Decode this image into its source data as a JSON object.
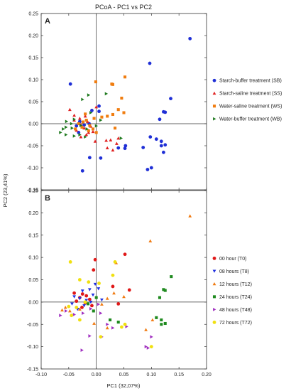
{
  "chart_data": {
    "type": "scatter",
    "title": "PCoA - PC1 vs PC2",
    "xlabel": "PC1 (32,07%)",
    "ylabel": "PC2 (23,41%)",
    "xlim": [
      -0.1,
      0.2
    ],
    "xticks": [
      "-0.10",
      "-0.05",
      "0.00",
      "0.05",
      "0.10",
      "0.15",
      "0.20"
    ],
    "xtick_values": [
      -0.1,
      -0.05,
      0.0,
      0.05,
      0.1,
      0.15,
      0.2
    ],
    "ylim": [
      -0.15,
      0.25
    ],
    "yticks": [
      "-0.15",
      "-0.10",
      "-0.05",
      "0.00",
      "0.05",
      "0.10",
      "0.15",
      "0.20",
      "0.25"
    ],
    "ytick_values": [
      -0.15,
      -0.1,
      -0.05,
      0.0,
      0.05,
      0.1,
      0.15,
      0.2,
      0.25
    ],
    "grid": false,
    "legend_position": "right",
    "panels": [
      {
        "label": "A",
        "series": [
          {
            "name": "Starch-buffer treatment (SB)",
            "marker": "circle",
            "color": "#1f2fd6",
            "points": [
              [
                0.17,
                0.193
              ],
              [
                0.097,
                0.137
              ],
              [
                0.135,
                0.057
              ],
              [
                0.122,
                0.027
              ],
              [
                0.125,
                0.026
              ],
              [
                0.115,
                0.01
              ],
              [
                0.098,
                -0.03
              ],
              [
                0.109,
                -0.035
              ],
              [
                0.118,
                -0.04
              ],
              [
                0.125,
                -0.048
              ],
              [
                0.118,
                -0.05
              ],
              [
                0.122,
                -0.065
              ],
              [
                0.1,
                -0.1
              ],
              [
                0.093,
                -0.104
              ],
              [
                0.085,
                -0.054
              ],
              [
                0.053,
                -0.05
              ],
              [
                0.052,
                -0.056
              ],
              [
                0.04,
                -0.055
              ],
              [
                0.008,
                -0.078
              ],
              [
                -0.012,
                -0.077
              ],
              [
                -0.025,
                -0.107
              ],
              [
                0.005,
                0.028
              ],
              [
                0.005,
                0.04
              ],
              [
                -0.047,
                0.09
              ],
              [
                -0.008,
                0.03
              ],
              [
                -0.03,
                0.005
              ],
              [
                -0.036,
                -0.005
              ],
              [
                -0.022,
                -0.003
              ],
              [
                -0.013,
                0.0
              ],
              [
                -0.032,
                -0.02
              ]
            ]
          },
          {
            "name": "Starch-saline treatment (SS)",
            "marker": "triangle-up",
            "color": "#e02020",
            "points": [
              [
                0.0,
                0.038
              ],
              [
                -0.048,
                0.032
              ],
              [
                -0.02,
                0.017
              ],
              [
                -0.03,
                0.012
              ],
              [
                -0.04,
                0.008
              ],
              [
                -0.016,
                0.005
              ],
              [
                -0.028,
                -0.002
              ],
              [
                -0.01,
                -0.006
              ],
              [
                -0.022,
                -0.01
              ],
              [
                -0.036,
                -0.015
              ],
              [
                -0.006,
                -0.018
              ],
              [
                -0.014,
                -0.02
              ],
              [
                -0.028,
                -0.03
              ],
              [
                -0.002,
                -0.04
              ],
              [
                0.04,
                -0.033
              ],
              [
                0.026,
                -0.037
              ],
              [
                0.018,
                -0.038
              ],
              [
                0.037,
                -0.045
              ],
              [
                0.03,
                -0.06
              ],
              [
                0.02,
                -0.055
              ],
              [
                -0.04,
                0.019
              ],
              [
                -0.018,
                -0.025
              ]
            ]
          },
          {
            "name": "Water-saline treatment (WS)",
            "marker": "square",
            "color": "#f07d10",
            "points": [
              [
                0.052,
                0.106
              ],
              [
                -0.001,
                0.095
              ],
              [
                0.028,
                0.09
              ],
              [
                0.03,
                0.089
              ],
              [
                0.046,
                0.058
              ],
              [
                0.04,
                0.032
              ],
              [
                0.05,
                0.025
              ],
              [
                0.03,
                0.021
              ],
              [
                0.02,
                0.017
              ],
              [
                0.01,
                0.015
              ],
              [
                -0.004,
                0.012
              ],
              [
                -0.018,
                0.008
              ],
              [
                -0.024,
                0.004
              ],
              [
                -0.032,
                0.0
              ],
              [
                -0.012,
                -0.004
              ],
              [
                -0.026,
                -0.008
              ],
              [
                -0.006,
                -0.012
              ],
              [
                -0.038,
                -0.012
              ],
              [
                -0.014,
                -0.016
              ],
              [
                0.034,
                -0.01
              ],
              [
                -0.02,
                0.022
              ],
              [
                0.0,
                -0.02
              ]
            ]
          },
          {
            "name": "Water-buffer treatment (WB)",
            "marker": "triangle-right",
            "color": "#1f7a1f",
            "points": [
              [
                -0.025,
                0.055
              ],
              [
                -0.014,
                0.065
              ],
              [
                0.018,
                0.068
              ],
              [
                -0.01,
                0.025
              ],
              [
                -0.04,
                0.01
              ],
              [
                -0.054,
                0.005
              ],
              [
                -0.055,
                -0.008
              ],
              [
                -0.044,
                -0.01
              ],
              [
                -0.065,
                -0.02
              ],
              [
                -0.055,
                -0.025
              ],
              [
                -0.04,
                -0.028
              ],
              [
                -0.03,
                -0.025
              ],
              [
                -0.017,
                -0.012
              ],
              [
                -0.028,
                -0.004
              ],
              [
                -0.045,
                0.0
              ],
              [
                -0.02,
                -0.03
              ],
              [
                0.045,
                -0.033
              ],
              [
                -0.06,
                -0.012
              ],
              [
                0.0,
                -0.005
              ],
              [
                0.008,
                0.008
              ]
            ]
          }
        ]
      },
      {
        "label": "B",
        "series": [
          {
            "name": "00 hour (T0)",
            "marker": "circle",
            "color": "#e01818",
            "points": [
              [
                0.052,
                0.107
              ],
              [
                -0.002,
                0.095
              ],
              [
                -0.005,
                0.072
              ],
              [
                0.03,
                0.035
              ],
              [
                0.06,
                0.027
              ],
              [
                -0.04,
                0.02
              ],
              [
                -0.025,
                0.018
              ],
              [
                -0.018,
                0.014
              ],
              [
                -0.03,
                0.01
              ],
              [
                -0.012,
                0.006
              ],
              [
                -0.036,
                0.002
              ],
              [
                -0.02,
                -0.002
              ],
              [
                -0.008,
                -0.008
              ],
              [
                -0.026,
                -0.012
              ],
              [
                0.04,
                -0.004
              ]
            ]
          },
          {
            "name": "08 hours (T8)",
            "marker": "triangle-down",
            "color": "#2030e0",
            "points": [
              [
                -0.002,
                0.04
              ],
              [
                -0.012,
                0.028
              ],
              [
                -0.025,
                0.025
              ],
              [
                -0.04,
                0.012
              ],
              [
                -0.03,
                0.008
              ],
              [
                -0.018,
                0.004
              ],
              [
                -0.01,
                0.0
              ],
              [
                -0.044,
                -0.004
              ],
              [
                -0.022,
                -0.008
              ],
              [
                -0.034,
                -0.016
              ],
              [
                0.004,
                0.03
              ],
              [
                -0.006,
                0.016
              ],
              [
                0.01,
                0.005
              ]
            ]
          },
          {
            "name": "12 hours (T12)",
            "marker": "triangle-up",
            "color": "#f07a10",
            "points": [
              [
                0.17,
                0.193
              ],
              [
                0.098,
                0.137
              ],
              [
                0.036,
                0.088
              ],
              [
                0.032,
                0.02
              ],
              [
                0.05,
                0.012
              ],
              [
                0.02,
                0.008
              ],
              [
                -0.056,
                -0.012
              ],
              [
                -0.062,
                -0.018
              ],
              [
                -0.048,
                -0.02
              ],
              [
                -0.03,
                -0.016
              ],
              [
                0.102,
                -0.04
              ],
              [
                0.09,
                -0.062
              ],
              [
                0.02,
                -0.058
              ],
              [
                -0.004,
                -0.048
              ],
              [
                0.01,
                -0.005
              ]
            ]
          },
          {
            "name": "24 hours (T24)",
            "marker": "square",
            "color": "#1f8a1f",
            "points": [
              [
                0.136,
                0.057
              ],
              [
                0.122,
                0.028
              ],
              [
                0.125,
                0.026
              ],
              [
                0.115,
                0.01
              ],
              [
                0.109,
                -0.035
              ],
              [
                0.118,
                -0.04
              ],
              [
                0.125,
                -0.048
              ],
              [
                0.118,
                -0.05
              ],
              [
                0.04,
                -0.045
              ],
              [
                0.025,
                -0.04
              ],
              [
                -0.005,
                -0.02
              ],
              [
                -0.015,
                -0.004
              ],
              [
                0.0,
                0.01
              ]
            ]
          },
          {
            "name": "48 hours (T48)",
            "marker": "triangle-right",
            "color": "#a030c0",
            "points": [
              [
                0.094,
                -0.103
              ],
              [
                -0.026,
                -0.108
              ],
              [
                -0.012,
                -0.076
              ],
              [
                0.01,
                -0.078
              ],
              [
                0.02,
                -0.05
              ],
              [
                0.055,
                -0.055
              ],
              [
                0.03,
                -0.058
              ],
              [
                0.1,
                -0.078
              ],
              [
                0.09,
                -0.1
              ],
              [
                -0.065,
                -0.03
              ],
              [
                -0.04,
                -0.028
              ],
              [
                -0.024,
                -0.025
              ],
              [
                -0.01,
                -0.015
              ],
              [
                0.008,
                -0.025
              ],
              [
                -0.055,
                -0.02
              ],
              [
                0.004,
                -0.005
              ]
            ]
          },
          {
            "name": "72 hours (T72)",
            "marker": "circle",
            "color": "#f0e010",
            "points": [
              [
                -0.047,
                0.09
              ],
              [
                0.034,
                0.09
              ],
              [
                0.03,
                0.06
              ],
              [
                -0.03,
                0.05
              ],
              [
                -0.014,
                0.045
              ],
              [
                0.005,
                0.042
              ],
              [
                0.008,
                -0.078
              ],
              [
                0.052,
                -0.05
              ],
              [
                0.046,
                -0.056
              ],
              [
                -0.045,
                -0.03
              ],
              [
                -0.036,
                -0.012
              ],
              [
                -0.02,
                0.0
              ],
              [
                -0.05,
                -0.01
              ],
              [
                0.1,
                -0.1
              ],
              [
                -0.03,
                -0.04
              ]
            ]
          }
        ]
      }
    ]
  }
}
